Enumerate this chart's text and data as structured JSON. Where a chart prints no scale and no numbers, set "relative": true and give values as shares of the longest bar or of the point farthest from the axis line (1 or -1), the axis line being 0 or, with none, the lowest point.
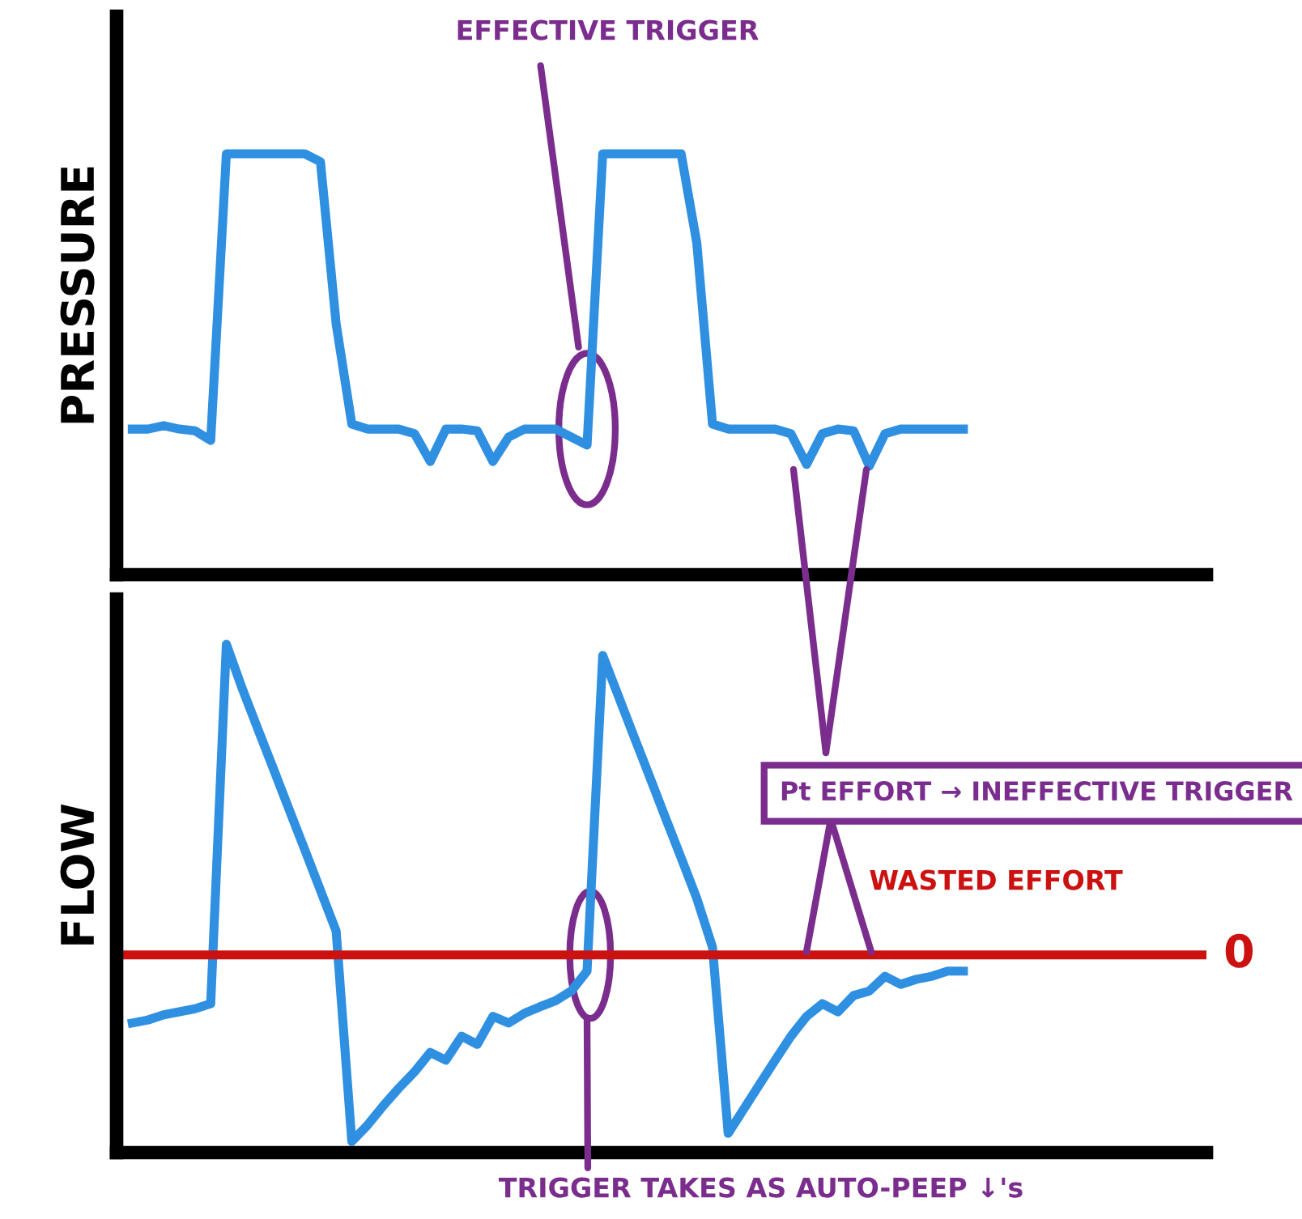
{
  "chart_data": [
    {
      "type": "line",
      "ylabel": "PRESSURE",
      "relative": true,
      "categories": [
        null,
        null,
        null,
        null,
        null,
        null,
        null,
        null,
        null,
        null,
        null,
        null,
        null,
        null,
        null,
        null,
        null,
        null,
        null,
        null,
        null,
        null,
        null,
        null,
        null,
        null,
        null,
        null,
        null,
        null,
        null,
        null,
        null,
        null,
        null,
        null,
        null,
        null,
        null,
        null,
        null,
        null,
        null,
        null,
        null,
        null,
        null,
        null,
        null,
        null,
        null,
        null,
        null,
        null
      ],
      "series": [
        {
          "color": "#2f8fe0",
          "values": [
            0.346,
            0.346,
            0.354,
            0.346,
            0.342,
            0.319,
            1,
            1,
            1,
            1,
            1,
            1,
            0.981,
            0.596,
            0.358,
            0.346,
            0.346,
            0.346,
            0.335,
            0.269,
            0.346,
            0.346,
            0.342,
            0.269,
            0.327,
            0.346,
            0.346,
            0.346,
            0.327,
            0.308,
            1,
            1,
            1,
            1,
            1,
            1,
            0.788,
            0.358,
            0.346,
            0.346,
            0.346,
            0.346,
            0.335,
            0.262,
            0.335,
            0.346,
            0.342,
            0.258,
            0.335,
            0.346,
            0.346,
            0.346,
            0.346,
            0.346
          ]
        }
      ],
      "annotations": [
        "EFFECTIVE TRIGGER"
      ]
    },
    {
      "type": "line",
      "ylabel": "FLOW",
      "relative": true,
      "categories": [
        null,
        null,
        null,
        null,
        null,
        null,
        null,
        null,
        null,
        null,
        null,
        null,
        null,
        null,
        null,
        null,
        null,
        null,
        null,
        null,
        null,
        null,
        null,
        null,
        null,
        null,
        null,
        null,
        null,
        null,
        null,
        null,
        null,
        null,
        null,
        null,
        null,
        null,
        null,
        null,
        null,
        null,
        null,
        null,
        null,
        null,
        null,
        null,
        null,
        null,
        null,
        null,
        null,
        null
      ],
      "series": [
        {
          "color": "#2f8fe0",
          "values": [
            0.255,
            0.261,
            0.271,
            0.277,
            0.283,
            0.293,
            1,
            0.914,
            0.834,
            0.755,
            0.675,
            0.596,
            0.516,
            0.436,
            0.022,
            0.054,
            0.092,
            0.127,
            0.159,
            0.197,
            0.182,
            0.229,
            0.213,
            0.268,
            0.255,
            0.274,
            0.287,
            0.299,
            0.318,
            0.357,
            0.978,
            0.898,
            0.818,
            0.739,
            0.659,
            0.58,
            0.5,
            0.404,
            0.038,
            0.086,
            0.134,
            0.182,
            0.229,
            0.268,
            0.293,
            0.277,
            0.309,
            0.318,
            0.347,
            0.331,
            0.341,
            0.347,
            0.357,
            0.357
          ]
        }
      ],
      "ref_lines": [
        {
          "axis": "y",
          "value": 0.389,
          "label": "0",
          "color": "#cc1111"
        }
      ],
      "annotations": [
        "Pt EFFORT → INEFFECTIVE TRIGGER",
        "WASTED EFFORT",
        "TRIGGER TAKES AS AUTO-PEEP ↓'s"
      ]
    }
  ]
}
